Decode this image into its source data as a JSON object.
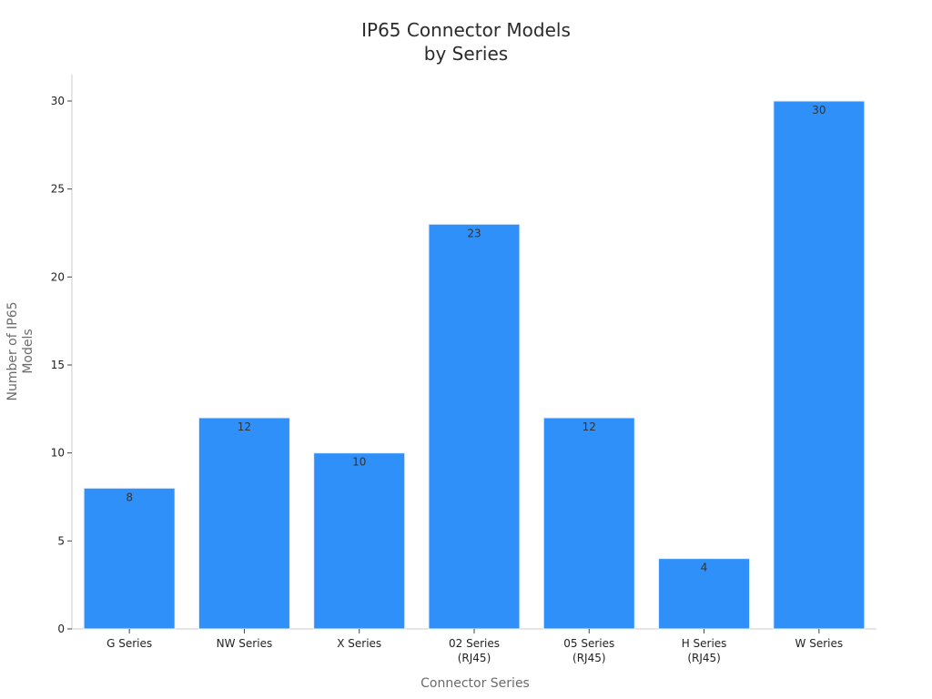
{
  "chart_data": {
    "type": "bar",
    "title": [
      "IP65 Connector Models",
      "by Series"
    ],
    "xlabel": "Connector Series",
    "ylabel": [
      "Number of IP65",
      "Models"
    ],
    "categories": [
      [
        "G Series"
      ],
      [
        "NW Series"
      ],
      [
        "X Series"
      ],
      [
        "02 Series",
        "(RJ45)"
      ],
      [
        "05 Series",
        "(RJ45)"
      ],
      [
        "H Series",
        "(RJ45)"
      ],
      [
        "W Series"
      ]
    ],
    "values": [
      8,
      12,
      10,
      23,
      12,
      4,
      30
    ],
    "ylim": [
      0,
      31.5
    ],
    "yticks": [
      0,
      5,
      10,
      15,
      20,
      25,
      30
    ],
    "grid": false,
    "legend": "none",
    "bar_color": "#2e90f8",
    "bar_edge_color": "#e6efff"
  }
}
